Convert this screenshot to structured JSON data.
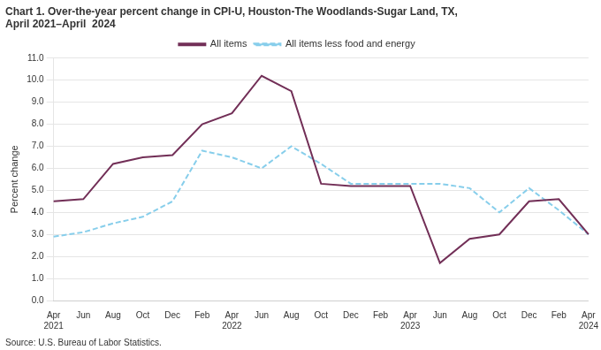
{
  "chart_data": {
    "type": "line",
    "title": "Chart 1. Over-the-year percent change in CPI-U, Houston-The Woodlands-Sugar Land, TX,\nApril 2021–April  2024",
    "y_label": "Percent change",
    "annotations": [
      "Source: U.S. Bureau of Labor Statistics."
    ],
    "categories": [
      "Apr\n2021",
      "Jun",
      "Aug",
      "Oct",
      "Dec",
      "Feb",
      "Apr\n2022",
      "Jun",
      "Aug",
      "Oct",
      "Dec",
      "Feb",
      "Apr\n2023",
      "Jun",
      "Aug",
      "Oct",
      "Dec",
      "Feb",
      "Apr\n2024"
    ],
    "series": [
      {
        "name": "All items",
        "color": "#722F57",
        "line_style": "solid",
        "values": [
          4.5,
          4.6,
          6.2,
          6.5,
          6.6,
          8.0,
          8.5,
          10.2,
          9.5,
          5.3,
          5.2,
          5.2,
          5.2,
          1.7,
          2.8,
          3.0,
          4.5,
          4.6,
          3.0
        ]
      },
      {
        "name": "All items less food and energy",
        "color": "#87CEEB",
        "line_style": "dashed",
        "values": [
          2.9,
          3.1,
          3.5,
          3.8,
          4.5,
          6.8,
          6.5,
          6.0,
          7.0,
          6.2,
          5.3,
          5.3,
          5.3,
          5.3,
          5.1,
          4.0,
          5.1,
          4.1,
          3.0
        ]
      }
    ],
    "ylim": [
      0.0,
      11.0
    ],
    "yticks": [
      {
        "value": 0,
        "label": "0.0"
      },
      {
        "value": 1,
        "label": "1.0"
      },
      {
        "value": 2,
        "label": "2.0"
      },
      {
        "value": 3,
        "label": "3.0"
      },
      {
        "value": 4,
        "label": "4.0"
      },
      {
        "value": 5,
        "label": "5.0"
      },
      {
        "value": 6,
        "label": "6.0"
      },
      {
        "value": 7,
        "label": "7.0"
      },
      {
        "value": 8,
        "label": "8.0"
      },
      {
        "value": 9,
        "label": "9.0"
      },
      {
        "value": 10,
        "label": "10.0"
      },
      {
        "value": 11,
        "label": "11.0"
      }
    ],
    "grid": true,
    "legend": "top"
  }
}
